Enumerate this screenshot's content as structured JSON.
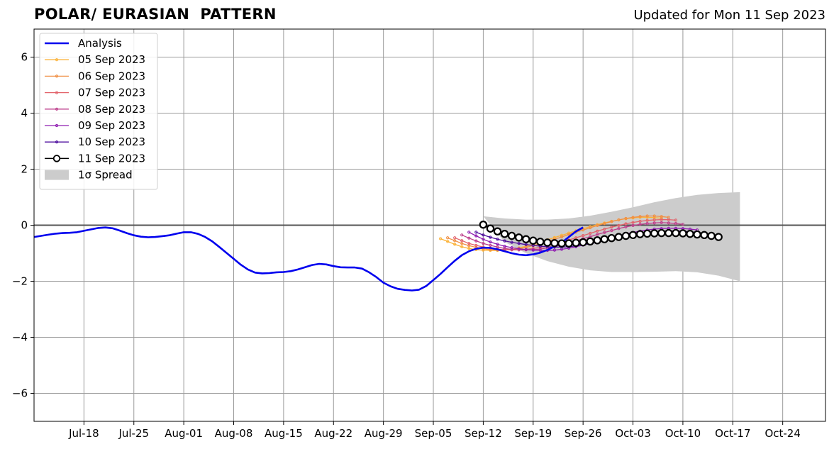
{
  "chart_data": {
    "type": "line",
    "title": "POLAR/ EURASIAN  PATTERN",
    "subtitle": "Updated for Mon 11 Sep 2023",
    "xlabel": "",
    "ylabel": "",
    "x_range": [
      "2023-07-11",
      "2023-10-30"
    ],
    "ylim": [
      -7,
      7
    ],
    "y_ticks": [
      -6,
      -4,
      -2,
      0,
      2,
      4,
      6
    ],
    "y_tick_labels": [
      "−6",
      "−4",
      "−2",
      "0",
      "2",
      "4",
      "6"
    ],
    "x_ticks": [
      "2023-07-18",
      "2023-07-25",
      "2023-08-01",
      "2023-08-08",
      "2023-08-15",
      "2023-08-22",
      "2023-08-29",
      "2023-09-05",
      "2023-09-12",
      "2023-09-19",
      "2023-09-26",
      "2023-10-03",
      "2023-10-10",
      "2023-10-17",
      "2023-10-24"
    ],
    "x_tick_labels": [
      "Jul-18",
      "Jul-25",
      "Aug-01",
      "Aug-08",
      "Aug-15",
      "Aug-22",
      "Aug-29",
      "Sep-05",
      "Sep-12",
      "Sep-19",
      "Sep-26",
      "Oct-03",
      "Oct-10",
      "Oct-17",
      "Oct-24"
    ],
    "grid": true,
    "zero_line": true,
    "legend_position": "top-left",
    "analysis": {
      "name": "Analysis",
      "color": "#0000ee",
      "start": "2023-07-11",
      "values": [
        -0.42,
        -0.38,
        -0.34,
        -0.3,
        -0.28,
        -0.27,
        -0.25,
        -0.2,
        -0.15,
        -0.1,
        -0.08,
        -0.11,
        -0.19,
        -0.28,
        -0.36,
        -0.41,
        -0.43,
        -0.42,
        -0.39,
        -0.36,
        -0.3,
        -0.25,
        -0.25,
        -0.31,
        -0.42,
        -0.58,
        -0.78,
        -0.99,
        -1.2,
        -1.41,
        -1.58,
        -1.69,
        -1.72,
        -1.71,
        -1.68,
        -1.67,
        -1.64,
        -1.58,
        -1.5,
        -1.42,
        -1.38,
        -1.4,
        -1.46,
        -1.5,
        -1.51,
        -1.51,
        -1.55,
        -1.68,
        -1.85,
        -2.05,
        -2.18,
        -2.27,
        -2.31,
        -2.33,
        -2.3,
        -2.17,
        -1.96,
        -1.74,
        -1.5,
        -1.27,
        -1.07,
        -0.93,
        -0.84,
        -0.8,
        -0.81,
        -0.86,
        -0.93,
        -1.0,
        -1.05,
        -1.07,
        -1.04,
        -0.98,
        -0.88,
        -0.76,
        -0.62,
        -0.42,
        -0.22,
        -0.08
      ]
    },
    "forecasts": [
      {
        "name": "05 Sep 2023",
        "color": "#fbb238",
        "start": "2023-09-06",
        "values": [
          -0.48,
          -0.58,
          -0.68,
          -0.77,
          -0.83,
          -0.87,
          -0.89,
          -0.9,
          -0.9,
          -0.89,
          -0.86,
          -0.81,
          -0.75,
          -0.68,
          -0.6,
          -0.52,
          -0.44,
          -0.36,
          -0.28,
          -0.2,
          -0.12,
          -0.05,
          0.02,
          0.08,
          0.14,
          0.19,
          0.23,
          0.26,
          0.28,
          0.28,
          0.27,
          0.25
        ]
      },
      {
        "name": "06 Sep 2023",
        "color": "#f08f44",
        "start": "2023-09-07",
        "values": [
          -0.45,
          -0.55,
          -0.65,
          -0.73,
          -0.79,
          -0.84,
          -0.87,
          -0.88,
          -0.88,
          -0.87,
          -0.84,
          -0.79,
          -0.73,
          -0.66,
          -0.58,
          -0.5,
          -0.42,
          -0.33,
          -0.25,
          -0.17,
          -0.09,
          -0.01,
          0.06,
          0.13,
          0.19,
          0.24,
          0.28,
          0.31,
          0.33,
          0.33,
          0.31,
          0.28
        ]
      },
      {
        "name": "07 Sep 2023",
        "color": "#e2626a",
        "start": "2023-09-08",
        "values": [
          -0.45,
          -0.55,
          -0.65,
          -0.72,
          -0.78,
          -0.82,
          -0.85,
          -0.87,
          -0.88,
          -0.88,
          -0.86,
          -0.83,
          -0.79,
          -0.74,
          -0.68,
          -0.61,
          -0.53,
          -0.45,
          -0.37,
          -0.29,
          -0.21,
          -0.14,
          -0.07,
          -0.01,
          0.05,
          0.1,
          0.14,
          0.17,
          0.19,
          0.2,
          0.2,
          0.18
        ]
      },
      {
        "name": "08 Sep 2023",
        "color": "#bd3e8b",
        "start": "2023-09-09",
        "values": [
          -0.35,
          -0.46,
          -0.56,
          -0.65,
          -0.72,
          -0.78,
          -0.83,
          -0.86,
          -0.88,
          -0.88,
          -0.87,
          -0.85,
          -0.81,
          -0.76,
          -0.7,
          -0.63,
          -0.56,
          -0.48,
          -0.41,
          -0.33,
          -0.26,
          -0.19,
          -0.12,
          -0.06,
          -0.01,
          0.03,
          0.06,
          0.08,
          0.09,
          0.08,
          0.06,
          0.03
        ]
      },
      {
        "name": "09 Sep 2023",
        "color": "#8f1cb1",
        "start": "2023-09-10",
        "values": [
          -0.25,
          -0.38,
          -0.5,
          -0.6,
          -0.68,
          -0.75,
          -0.8,
          -0.84,
          -0.87,
          -0.89,
          -0.9,
          -0.9,
          -0.89,
          -0.86,
          -0.82,
          -0.77,
          -0.71,
          -0.64,
          -0.57,
          -0.5,
          -0.43,
          -0.37,
          -0.31,
          -0.26,
          -0.21,
          -0.17,
          -0.14,
          -0.12,
          -0.11,
          -0.11,
          -0.12,
          -0.14,
          -0.17
        ]
      },
      {
        "name": "10 Sep 2023",
        "color": "#4b0b9c",
        "start": "2023-09-11",
        "values": [
          -0.25,
          -0.35,
          -0.43,
          -0.5,
          -0.56,
          -0.61,
          -0.65,
          -0.69,
          -0.72,
          -0.75,
          -0.77,
          -0.78,
          -0.78,
          -0.77,
          -0.74,
          -0.7,
          -0.66,
          -0.61,
          -0.55,
          -0.5,
          -0.44,
          -0.39,
          -0.34,
          -0.3,
          -0.26,
          -0.24,
          -0.22,
          -0.21,
          -0.2,
          -0.21,
          -0.23,
          -0.26,
          -0.3
        ]
      },
      {
        "name": "11 Sep 2023",
        "color": "#000000",
        "start": "2023-09-12",
        "values": [
          0.02,
          -0.12,
          -0.22,
          -0.31,
          -0.38,
          -0.44,
          -0.5,
          -0.55,
          -0.59,
          -0.62,
          -0.64,
          -0.65,
          -0.65,
          -0.63,
          -0.61,
          -0.58,
          -0.54,
          -0.5,
          -0.46,
          -0.42,
          -0.38,
          -0.35,
          -0.32,
          -0.3,
          -0.29,
          -0.28,
          -0.28,
          -0.28,
          -0.29,
          -0.31,
          -0.33,
          -0.35,
          -0.38,
          -0.42
        ]
      }
    ],
    "spread": {
      "name": "1σ Spread",
      "color": "#cccccc",
      "start": "2023-09-12",
      "step_days": 3,
      "upper": [
        0.32,
        0.24,
        0.2,
        0.2,
        0.24,
        0.34,
        0.48,
        0.64,
        0.82,
        0.97,
        1.08,
        1.15,
        1.18
      ],
      "lower": [
        0.32,
        -0.6,
        -1.0,
        -1.28,
        -1.48,
        -1.61,
        -1.67,
        -1.67,
        -1.66,
        -1.64,
        -1.68,
        -1.8,
        -2.0
      ]
    }
  }
}
